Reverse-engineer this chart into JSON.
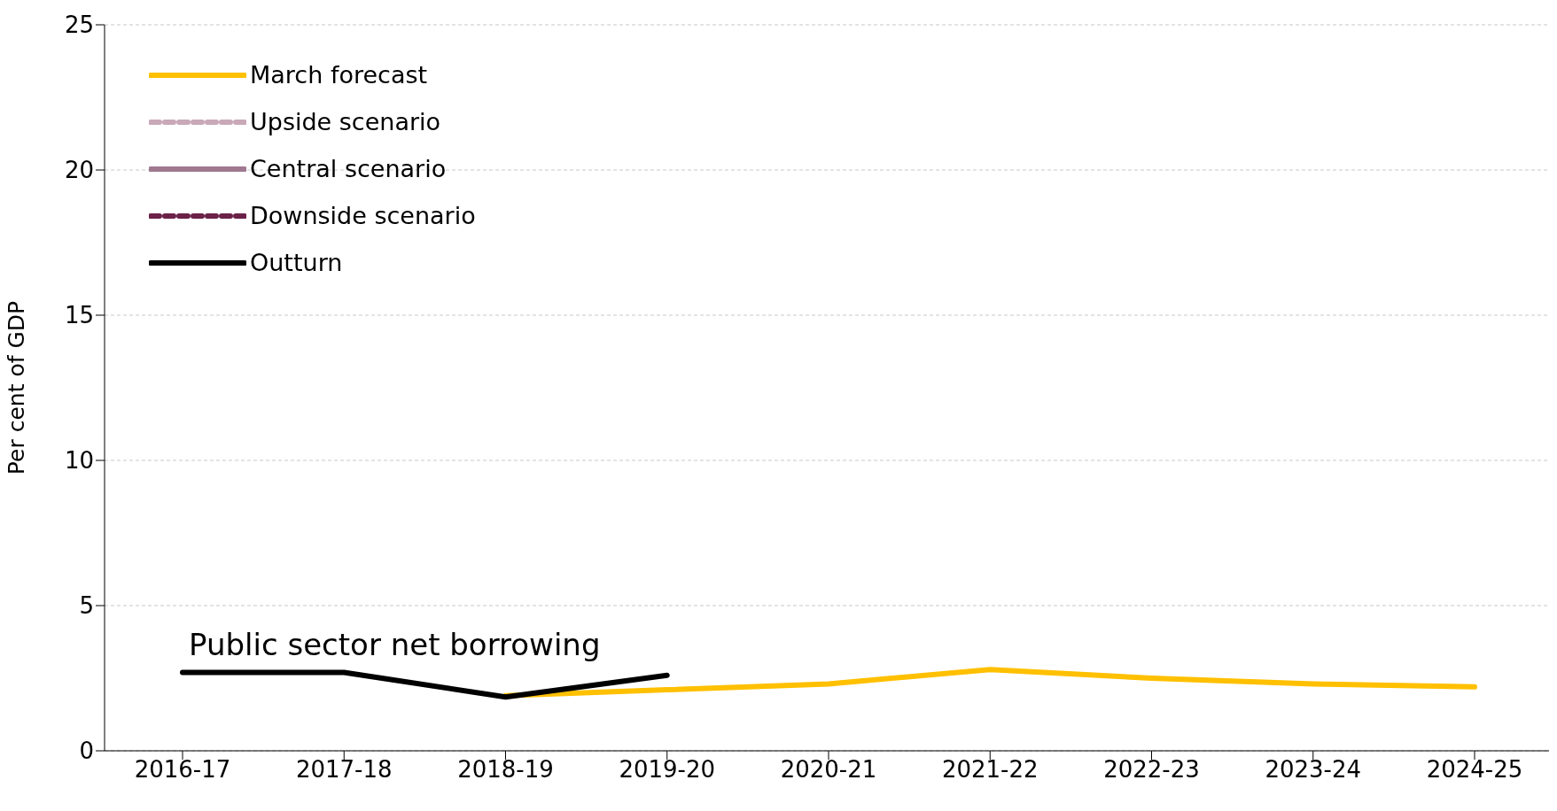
{
  "chart_data": {
    "type": "line",
    "ylabel": "Per cent of GDP",
    "annotations": [
      "Public sector net borrowing"
    ],
    "categories": [
      "2016-17",
      "2017-18",
      "2018-19",
      "2019-20",
      "2020-21",
      "2021-22",
      "2022-23",
      "2023-24",
      "2024-25"
    ],
    "series": [
      {
        "name": "March forecast",
        "color": "#ffc000",
        "line_style": "solid",
        "values": [
          null,
          null,
          1.9,
          2.1,
          2.3,
          2.8,
          2.5,
          2.3,
          2.2
        ]
      },
      {
        "name": "Upside scenario",
        "color": "#c9a8b8",
        "line_style": "dashed",
        "values": [
          null,
          null,
          null,
          null,
          null,
          null,
          null,
          null,
          null
        ]
      },
      {
        "name": "Central scenario",
        "color": "#a07890",
        "line_style": "solid",
        "values": [
          null,
          null,
          null,
          null,
          null,
          null,
          null,
          null,
          null
        ]
      },
      {
        "name": "Downside scenario",
        "color": "#6b2148",
        "line_style": "dashed",
        "values": [
          null,
          null,
          null,
          null,
          null,
          null,
          null,
          null,
          null
        ]
      },
      {
        "name": "Outturn",
        "color": "#000000",
        "line_style": "solid",
        "values": [
          2.7,
          2.7,
          1.85,
          2.6,
          null,
          null,
          null,
          null,
          null
        ]
      }
    ],
    "ylim": [
      0,
      25
    ],
    "yticks": [
      0,
      5,
      10,
      15,
      20,
      25
    ],
    "grid": "y",
    "legend": "top left",
    "marker": "none"
  }
}
